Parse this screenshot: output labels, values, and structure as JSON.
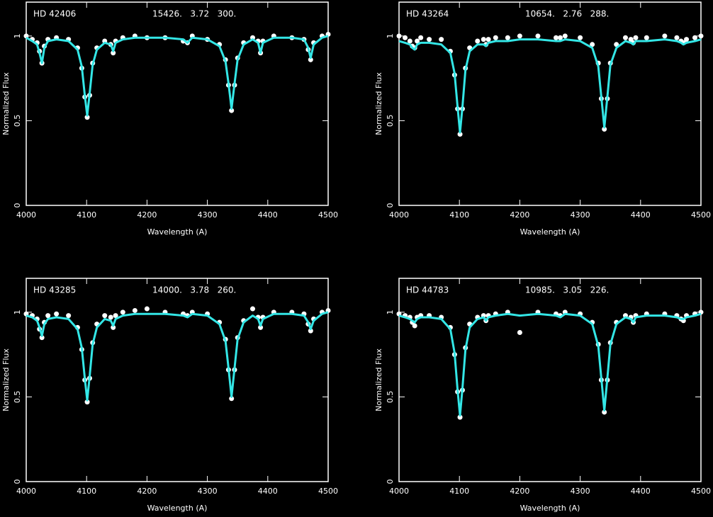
{
  "chart_data": [
    {
      "type": "line",
      "title": "HD 42406",
      "annotation": "15426.   3.72   300.",
      "xlabel": "Wavelength (A)",
      "ylabel": "Normalized Flux",
      "x": [
        4000,
        4010,
        4018,
        4022,
        4026,
        4030,
        4036,
        4050,
        4070,
        4085,
        4092,
        4097,
        4101,
        4105,
        4110,
        4117,
        4130,
        4140,
        4144,
        4148,
        4160,
        4180,
        4200,
        4230,
        4260,
        4267,
        4275,
        4300,
        4320,
        4330,
        4335,
        4340,
        4345,
        4350,
        4360,
        4375,
        4384,
        4388,
        4392,
        4410,
        4440,
        4460,
        4467,
        4471,
        4476,
        4490,
        4500
      ],
      "series": [
        {
          "color": "#ffffff",
          "marker": "dot",
          "values": [
            1.0,
            0.98,
            0.96,
            0.91,
            0.84,
            0.94,
            0.98,
            0.99,
            0.98,
            0.93,
            0.81,
            0.64,
            0.52,
            0.65,
            0.84,
            0.93,
            0.97,
            0.95,
            0.9,
            0.97,
            0.99,
            1.0,
            0.99,
            0.99,
            0.97,
            0.96,
            1.0,
            0.98,
            0.95,
            0.86,
            0.71,
            0.56,
            0.71,
            0.87,
            0.96,
            0.99,
            0.97,
            0.9,
            0.97,
            1.0,
            0.99,
            0.98,
            0.92,
            0.86,
            0.96,
            1.0,
            1.01
          ]
        },
        {
          "color": "#33e6e6",
          "values": [
            0.99,
            0.97,
            0.95,
            0.9,
            0.84,
            0.93,
            0.97,
            0.98,
            0.97,
            0.92,
            0.82,
            0.65,
            0.53,
            0.66,
            0.83,
            0.92,
            0.96,
            0.95,
            0.91,
            0.96,
            0.98,
            0.99,
            0.99,
            0.99,
            0.98,
            0.96,
            0.99,
            0.98,
            0.94,
            0.85,
            0.72,
            0.57,
            0.72,
            0.86,
            0.95,
            0.98,
            0.96,
            0.9,
            0.96,
            0.99,
            0.99,
            0.98,
            0.93,
            0.87,
            0.95,
            0.99,
            1.0
          ]
        }
      ],
      "xlim": [
        4000,
        4500
      ],
      "ylim": [
        0,
        1.2
      ],
      "xticks": [
        4000,
        4100,
        4200,
        4300,
        4400,
        4500
      ],
      "yticks": [
        0,
        0.5,
        1
      ]
    },
    {
      "type": "line",
      "title": "HD 43264",
      "annotation": "10654.   2.76   288.",
      "xlabel": "Wavelength (A)",
      "ylabel": "Normalized Flux",
      "x": [
        4000,
        4010,
        4018,
        4022,
        4026,
        4030,
        4036,
        4050,
        4070,
        4085,
        4092,
        4097,
        4101,
        4105,
        4110,
        4117,
        4130,
        4140,
        4144,
        4148,
        4160,
        4180,
        4200,
        4230,
        4260,
        4267,
        4275,
        4300,
        4320,
        4330,
        4335,
        4340,
        4345,
        4350,
        4360,
        4375,
        4384,
        4388,
        4392,
        4410,
        4440,
        4460,
        4467,
        4471,
        4476,
        4490,
        4500
      ],
      "series": [
        {
          "color": "#ffffff",
          "marker": "dot",
          "values": [
            1.0,
            0.99,
            0.97,
            0.94,
            0.93,
            0.97,
            0.99,
            0.98,
            0.98,
            0.91,
            0.77,
            0.57,
            0.42,
            0.57,
            0.81,
            0.93,
            0.97,
            0.98,
            0.95,
            0.98,
            0.99,
            0.99,
            1.0,
            1.0,
            0.99,
            0.99,
            1.0,
            0.99,
            0.95,
            0.84,
            0.63,
            0.45,
            0.63,
            0.84,
            0.95,
            0.99,
            0.98,
            0.96,
            0.99,
            0.99,
            1.0,
            0.99,
            0.97,
            0.96,
            0.98,
            0.99,
            1.0
          ]
        },
        {
          "color": "#33e6e6",
          "values": [
            0.97,
            0.96,
            0.95,
            0.93,
            0.92,
            0.95,
            0.96,
            0.96,
            0.95,
            0.9,
            0.78,
            0.58,
            0.43,
            0.58,
            0.8,
            0.91,
            0.95,
            0.95,
            0.94,
            0.96,
            0.97,
            0.97,
            0.98,
            0.98,
            0.97,
            0.97,
            0.98,
            0.97,
            0.93,
            0.82,
            0.64,
            0.46,
            0.64,
            0.83,
            0.93,
            0.97,
            0.96,
            0.95,
            0.97,
            0.97,
            0.98,
            0.97,
            0.96,
            0.95,
            0.96,
            0.97,
            0.98
          ]
        }
      ],
      "xlim": [
        4000,
        4500
      ],
      "ylim": [
        0,
        1.2
      ],
      "xticks": [
        4000,
        4100,
        4200,
        4300,
        4400,
        4500
      ],
      "yticks": [
        0,
        0.5,
        1
      ]
    },
    {
      "type": "line",
      "title": "HD 43285",
      "annotation": "14000.   3.78   260.",
      "xlabel": "Wavelength (A)",
      "ylabel": "Normalized Flux",
      "x": [
        4000,
        4010,
        4018,
        4022,
        4026,
        4030,
        4036,
        4050,
        4070,
        4085,
        4092,
        4097,
        4101,
        4105,
        4110,
        4117,
        4130,
        4140,
        4144,
        4148,
        4160,
        4180,
        4200,
        4230,
        4260,
        4267,
        4275,
        4300,
        4320,
        4330,
        4335,
        4340,
        4345,
        4350,
        4360,
        4375,
        4384,
        4388,
        4392,
        4410,
        4440,
        4460,
        4467,
        4471,
        4476,
        4490,
        4500
      ],
      "series": [
        {
          "color": "#ffffff",
          "marker": "dot",
          "values": [
            0.99,
            0.98,
            0.96,
            0.9,
            0.85,
            0.94,
            0.98,
            0.99,
            0.98,
            0.91,
            0.78,
            0.6,
            0.47,
            0.61,
            0.82,
            0.93,
            0.98,
            0.97,
            0.91,
            0.98,
            1.0,
            1.01,
            1.02,
            1.0,
            0.99,
            0.98,
            1.0,
            0.99,
            0.94,
            0.84,
            0.66,
            0.49,
            0.66,
            0.85,
            0.95,
            1.02,
            0.97,
            0.91,
            0.97,
            1.0,
            1.0,
            0.99,
            0.93,
            0.89,
            0.96,
            1.0,
            1.01
          ]
        },
        {
          "color": "#33e6e6",
          "values": [
            0.98,
            0.97,
            0.95,
            0.91,
            0.86,
            0.93,
            0.96,
            0.97,
            0.96,
            0.9,
            0.79,
            0.61,
            0.48,
            0.62,
            0.81,
            0.91,
            0.96,
            0.95,
            0.92,
            0.96,
            0.98,
            0.99,
            0.99,
            0.99,
            0.98,
            0.97,
            0.99,
            0.98,
            0.93,
            0.83,
            0.67,
            0.5,
            0.67,
            0.84,
            0.94,
            0.98,
            0.96,
            0.92,
            0.96,
            0.99,
            0.99,
            0.98,
            0.94,
            0.9,
            0.95,
            0.99,
            1.0
          ]
        }
      ],
      "xlim": [
        4000,
        4500
      ],
      "ylim": [
        0,
        1.2
      ],
      "xticks": [
        4000,
        4100,
        4200,
        4300,
        4400,
        4500
      ],
      "yticks": [
        0,
        0.5,
        1
      ]
    },
    {
      "type": "line",
      "title": "HD 44783",
      "annotation": "10985.   3.05   226.",
      "xlabel": "Wavelength (A)",
      "ylabel": "Normalized Flux",
      "x": [
        4000,
        4010,
        4018,
        4022,
        4026,
        4030,
        4036,
        4050,
        4070,
        4085,
        4092,
        4097,
        4101,
        4105,
        4110,
        4117,
        4130,
        4140,
        4144,
        4148,
        4160,
        4180,
        4200,
        4230,
        4260,
        4267,
        4275,
        4300,
        4320,
        4330,
        4335,
        4340,
        4345,
        4350,
        4360,
        4375,
        4384,
        4388,
        4392,
        4410,
        4440,
        4460,
        4467,
        4471,
        4476,
        4490,
        4500
      ],
      "series": [
        {
          "color": "#ffffff",
          "marker": "dot",
          "values": [
            0.99,
            0.98,
            0.97,
            0.94,
            0.92,
            0.97,
            0.98,
            0.98,
            0.97,
            0.91,
            0.75,
            0.53,
            0.38,
            0.54,
            0.79,
            0.93,
            0.97,
            0.98,
            0.95,
            0.98,
            0.99,
            1.0,
            0.88,
            1.0,
            0.99,
            0.98,
            1.0,
            0.99,
            0.94,
            0.81,
            0.6,
            0.41,
            0.6,
            0.82,
            0.94,
            0.98,
            0.97,
            0.94,
            0.98,
            0.99,
            0.99,
            0.98,
            0.96,
            0.95,
            0.98,
            0.99,
            1.0
          ]
        },
        {
          "color": "#33e6e6",
          "values": [
            0.98,
            0.97,
            0.96,
            0.95,
            0.94,
            0.96,
            0.97,
            0.97,
            0.96,
            0.9,
            0.76,
            0.54,
            0.39,
            0.55,
            0.78,
            0.91,
            0.96,
            0.97,
            0.95,
            0.97,
            0.98,
            0.99,
            0.98,
            0.99,
            0.98,
            0.97,
            0.99,
            0.98,
            0.93,
            0.8,
            0.61,
            0.42,
            0.61,
            0.81,
            0.93,
            0.97,
            0.96,
            0.94,
            0.97,
            0.98,
            0.98,
            0.97,
            0.96,
            0.96,
            0.97,
            0.98,
            0.99
          ]
        }
      ],
      "xlim": [
        4000,
        4500
      ],
      "ylim": [
        0,
        1.2
      ],
      "xticks": [
        4000,
        4100,
        4200,
        4300,
        4400,
        4500
      ],
      "yticks": [
        0,
        0.5,
        1
      ]
    }
  ]
}
